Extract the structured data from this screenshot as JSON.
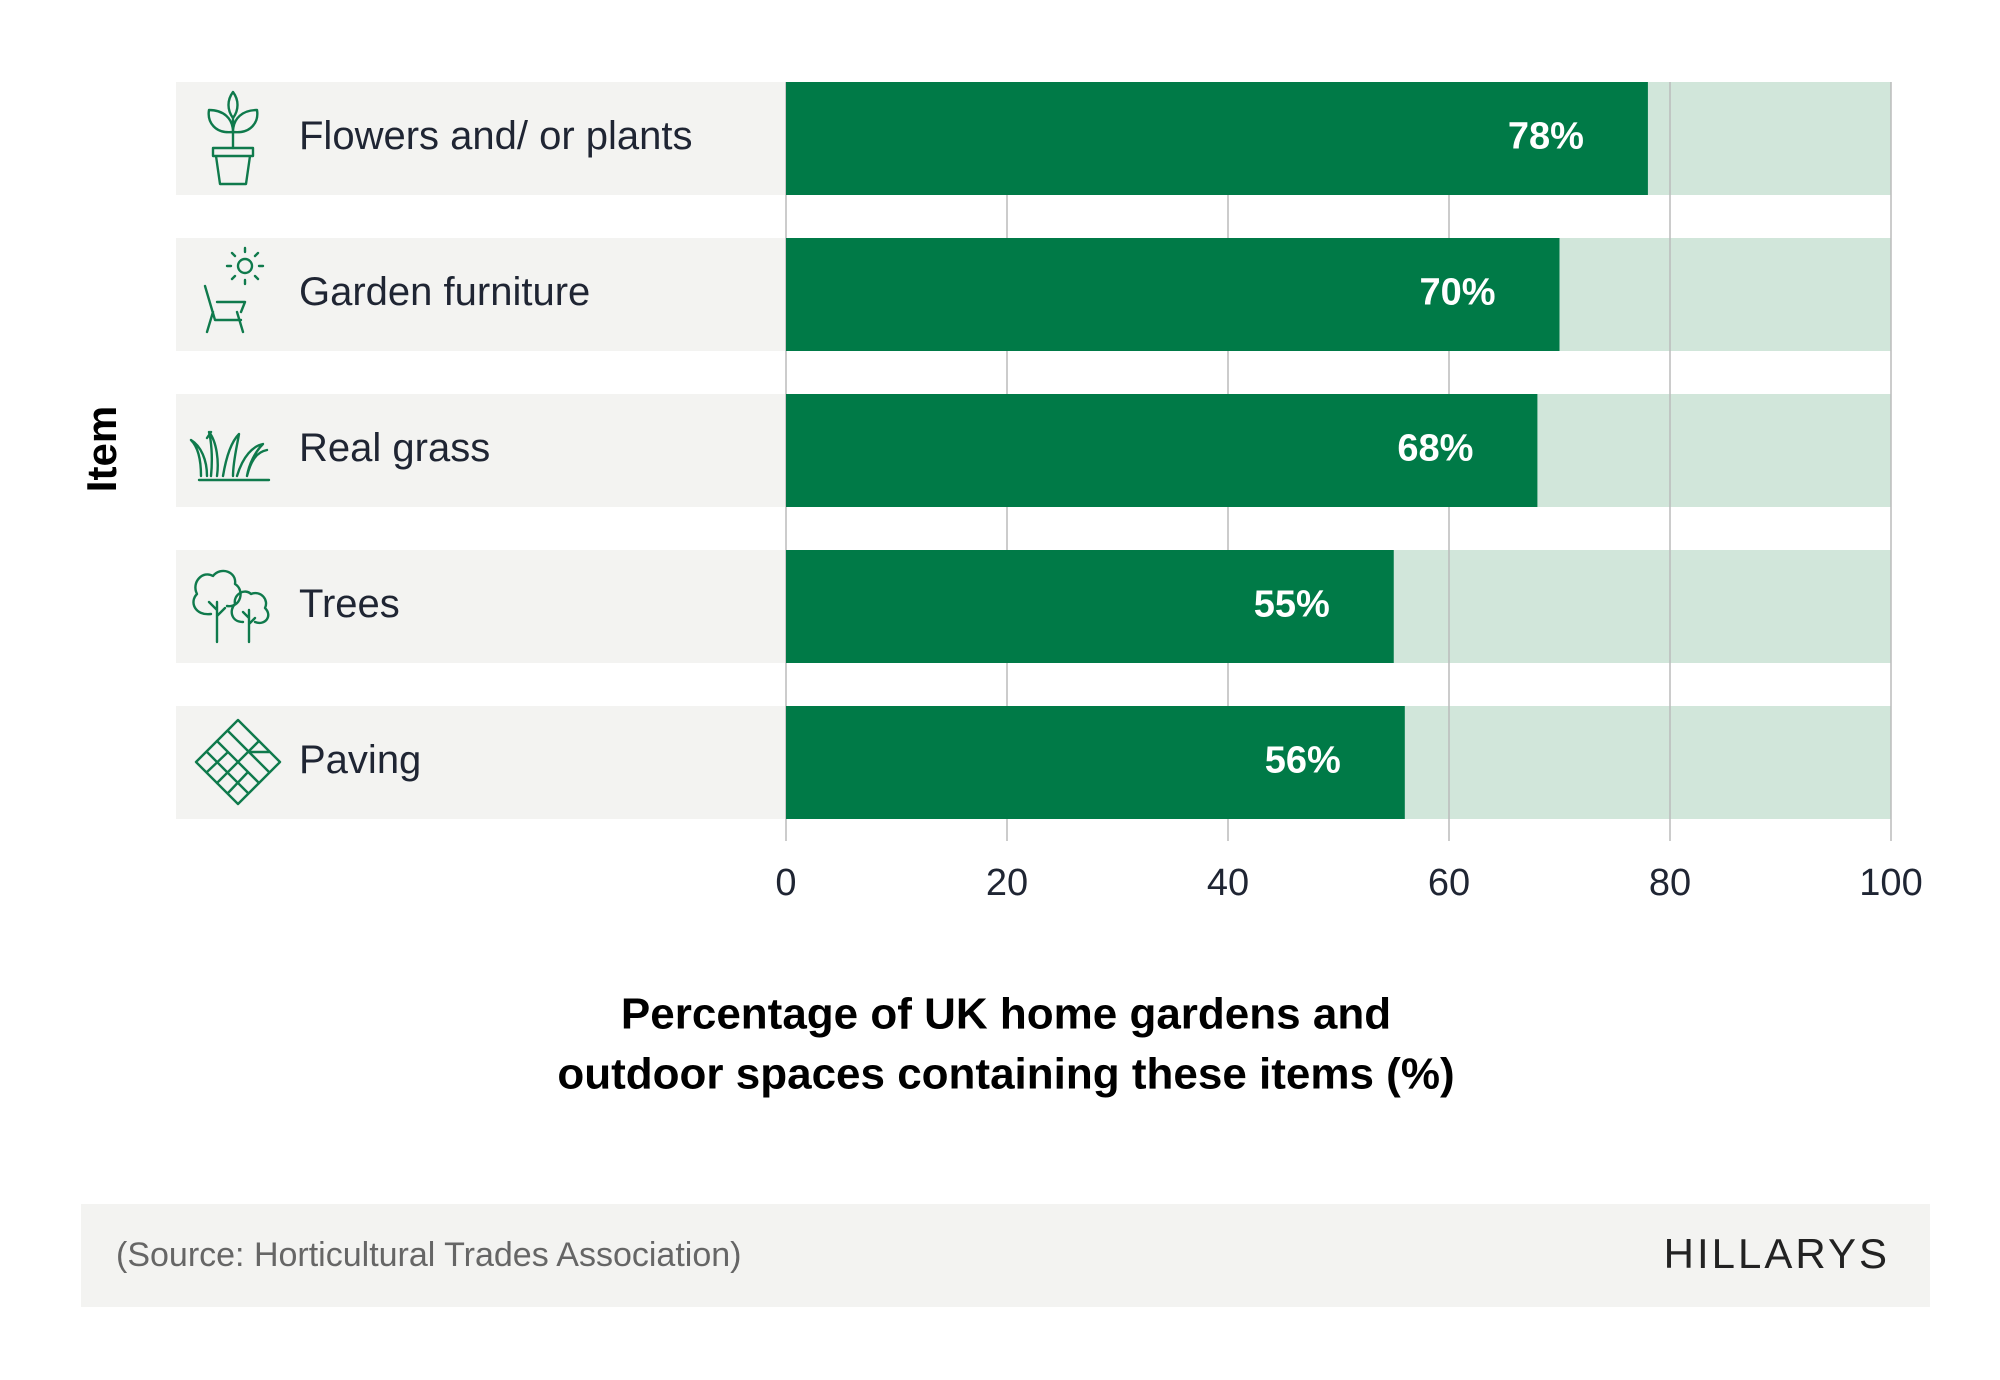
{
  "chart_data": {
    "type": "bar",
    "orientation": "horizontal",
    "ylabel": "Item",
    "xlabel": [
      "Percentage of UK home gardens and",
      "outdoor spaces containing these items (%)"
    ],
    "categories": [
      "Flowers and/ or plants",
      "Garden furniture",
      "Real grass",
      "Trees",
      "Paving"
    ],
    "values": [
      78,
      70,
      68,
      55,
      56
    ],
    "value_labels": [
      "78%",
      "70%",
      "68%",
      "55%",
      "56%"
    ],
    "color": "#007a47",
    "track_color": "#d1e6da",
    "xlim": [
      0,
      100
    ],
    "xticks": [
      0,
      20,
      40,
      60,
      80,
      100
    ],
    "grid": true,
    "source": "(Source: Horticultural Trades Association)",
    "brand": "HILLARYS"
  }
}
